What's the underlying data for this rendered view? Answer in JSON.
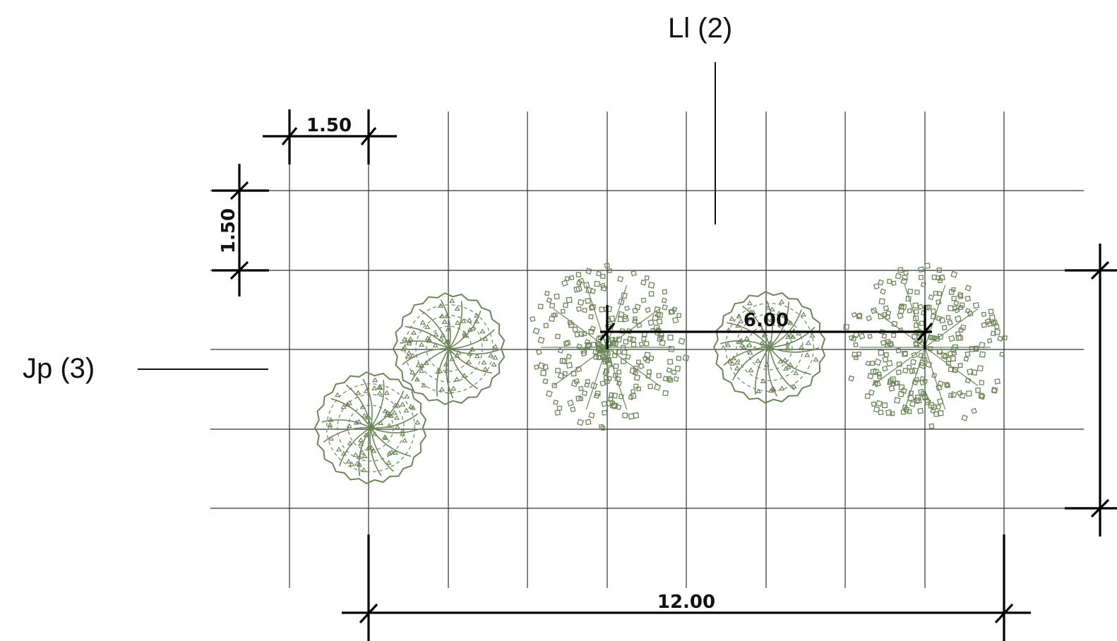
{
  "labels": {
    "ll": "Ll (2)",
    "jp": "Jp (3)"
  },
  "dimensions": {
    "grid_x_spacing": "1.50",
    "grid_y_spacing": "1.50",
    "tree_spacing": "6.00",
    "total_length": "12.00"
  },
  "colors": {
    "tree": "#6b8659",
    "grid": "#333333",
    "dimension": "#000000"
  },
  "legend": {
    "Jp": "Jp",
    "Ll": "Ll"
  }
}
